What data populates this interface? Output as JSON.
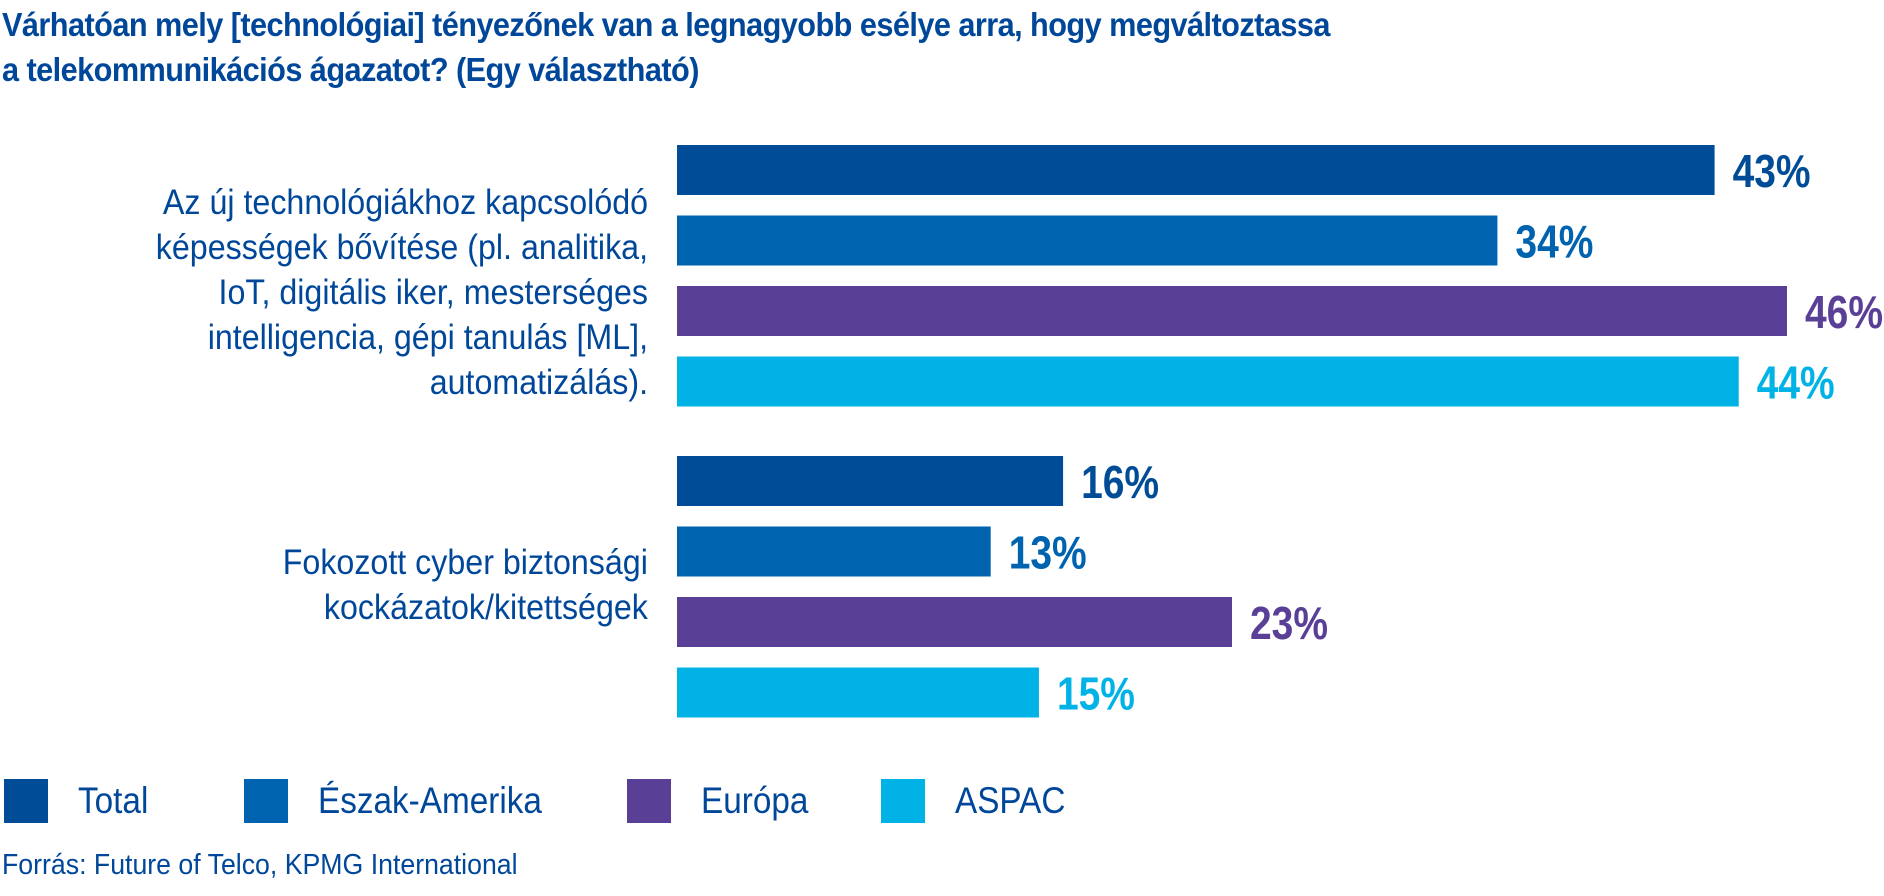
{
  "title_lines": [
    "Várhatóan mely [technológiai] tényezőnek van a legnagyobb esélye arra, hogy megváltoztassa",
    "a telekommunikációs ágazatot? (Egy választható)"
  ],
  "source": "Forrás: Future of Telco, KPMG International",
  "colors": {
    "Total": "#004c97",
    "Észak-Amerika": "#0063af",
    "Európa": "#5a3f96",
    "ASPAC": "#00b2e6",
    "text": "#00479a"
  },
  "chart_data": {
    "type": "bar",
    "orientation": "horizontal",
    "title": "Várhatóan mely [technológiai] tényezőnek van a legnagyobb esélye arra, hogy megváltoztassa a telekommunikációs ágazatot? (Egy választható)",
    "xlabel": "",
    "ylabel": "",
    "xlim": [
      0,
      46
    ],
    "grid": false,
    "legend_position": "bottom-left",
    "value_format": "percent",
    "categories": [
      {
        "label_lines": [
          "Az új technológiákhoz kapcsolódó",
          "képességek bővítése (pl. analitika,",
          "IoT, digitális iker, mesterséges",
          "intelligencia, gépi tanulás [ML],",
          "automatizálás)."
        ]
      },
      {
        "label_lines": [
          "Fokozott cyber biztonsági",
          "kockázatok/kitettségek"
        ]
      }
    ],
    "series": [
      {
        "name": "Total",
        "values": [
          43,
          16
        ]
      },
      {
        "name": "Észak-Amerika",
        "values": [
          34,
          13
        ]
      },
      {
        "name": "Európa",
        "values": [
          46,
          23
        ]
      },
      {
        "name": "ASPAC",
        "values": [
          44,
          15
        ]
      }
    ]
  }
}
